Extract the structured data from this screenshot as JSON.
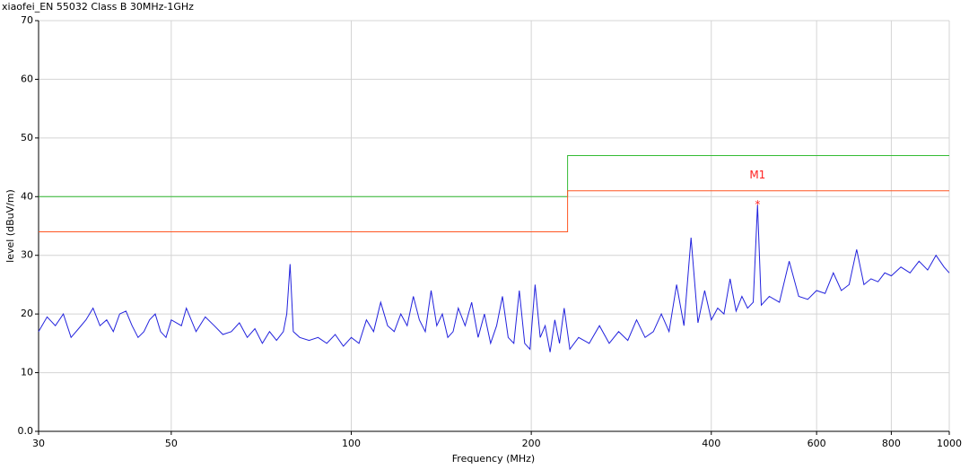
{
  "chart_data": {
    "type": "line",
    "title": "xiaofei_EN 55032 Class B 30MHz-1GHz",
    "x_label": "Frequency (MHz)",
    "y_label": "level (dBuV/m)",
    "log_x": true,
    "grid": true,
    "xlim": [
      30,
      1000
    ],
    "xticks": [
      30,
      50,
      100,
      200,
      400,
      600,
      800,
      1000
    ],
    "ylim": [
      0,
      70
    ],
    "yticks": [
      {
        "value": 0,
        "label": "0.0"
      },
      10,
      20,
      30,
      40,
      50,
      60,
      70
    ],
    "series": [
      {
        "color": "#33bb33",
        "x": [
          30,
          230,
          230,
          1000
        ],
        "values": [
          40,
          40,
          47,
          47
        ]
      },
      {
        "color": "#ff5522",
        "x": [
          30,
          230,
          230,
          1000
        ],
        "values": [
          34,
          34,
          41,
          41
        ]
      },
      {
        "color": "#2222dd",
        "x": [
          30,
          31,
          32,
          33,
          34,
          35,
          36,
          37,
          38,
          39,
          40,
          41,
          42,
          43,
          44,
          45,
          46,
          47,
          48,
          49,
          50,
          52,
          53,
          55,
          57,
          59,
          61,
          63,
          65,
          67,
          69,
          71,
          73,
          75,
          77,
          78,
          79,
          80,
          82,
          85,
          88,
          91,
          94,
          97,
          100,
          103,
          106,
          109,
          112,
          115,
          118,
          121,
          124,
          127,
          130,
          133,
          136,
          139,
          142,
          145,
          148,
          151,
          155,
          159,
          163,
          167,
          171,
          175,
          179,
          183,
          187,
          191,
          195,
          199,
          203,
          207,
          211,
          215,
          219,
          223,
          227,
          232,
          240,
          250,
          260,
          270,
          280,
          290,
          300,
          310,
          320,
          330,
          340,
          350,
          360,
          370,
          380,
          390,
          400,
          410,
          420,
          430,
          440,
          450,
          460,
          470,
          478,
          485,
          500,
          520,
          540,
          560,
          580,
          600,
          620,
          640,
          660,
          680,
          700,
          720,
          740,
          760,
          780,
          800,
          830,
          860,
          890,
          920,
          950,
          980,
          1000
        ],
        "values": [
          17,
          19.5,
          18,
          20,
          16,
          17.5,
          19,
          21,
          18,
          19,
          17,
          20,
          20.5,
          18,
          16,
          17,
          19,
          20,
          17,
          16,
          19,
          18,
          21,
          17,
          19.5,
          18,
          16.5,
          17,
          18.5,
          16,
          17.5,
          15,
          17,
          15.5,
          17,
          20,
          28.5,
          17,
          16,
          15.5,
          16,
          15,
          16.5,
          14.5,
          16,
          15,
          19,
          17,
          22,
          18,
          17,
          20,
          18,
          23,
          19,
          17,
          24,
          18,
          20,
          16,
          17,
          21,
          18,
          22,
          16,
          20,
          15,
          18,
          23,
          16,
          15,
          24,
          15,
          14,
          25,
          16,
          18,
          13.5,
          19,
          15,
          21,
          14,
          16,
          15,
          18,
          15,
          17,
          15.5,
          19,
          16,
          17,
          20,
          17,
          25,
          18,
          33,
          18.5,
          24,
          19,
          21,
          20,
          26,
          20.5,
          23,
          21,
          22,
          38.6,
          21.5,
          23,
          22,
          29,
          23,
          22.5,
          24,
          23.5,
          27,
          24,
          25,
          31,
          25,
          26,
          25.5,
          27,
          26.5,
          28,
          27,
          29,
          27.5,
          30,
          28,
          27
        ]
      }
    ],
    "markers": [
      {
        "name": "M1",
        "x": 478,
        "y": 38.6,
        "color": "#ff2222"
      }
    ]
  }
}
